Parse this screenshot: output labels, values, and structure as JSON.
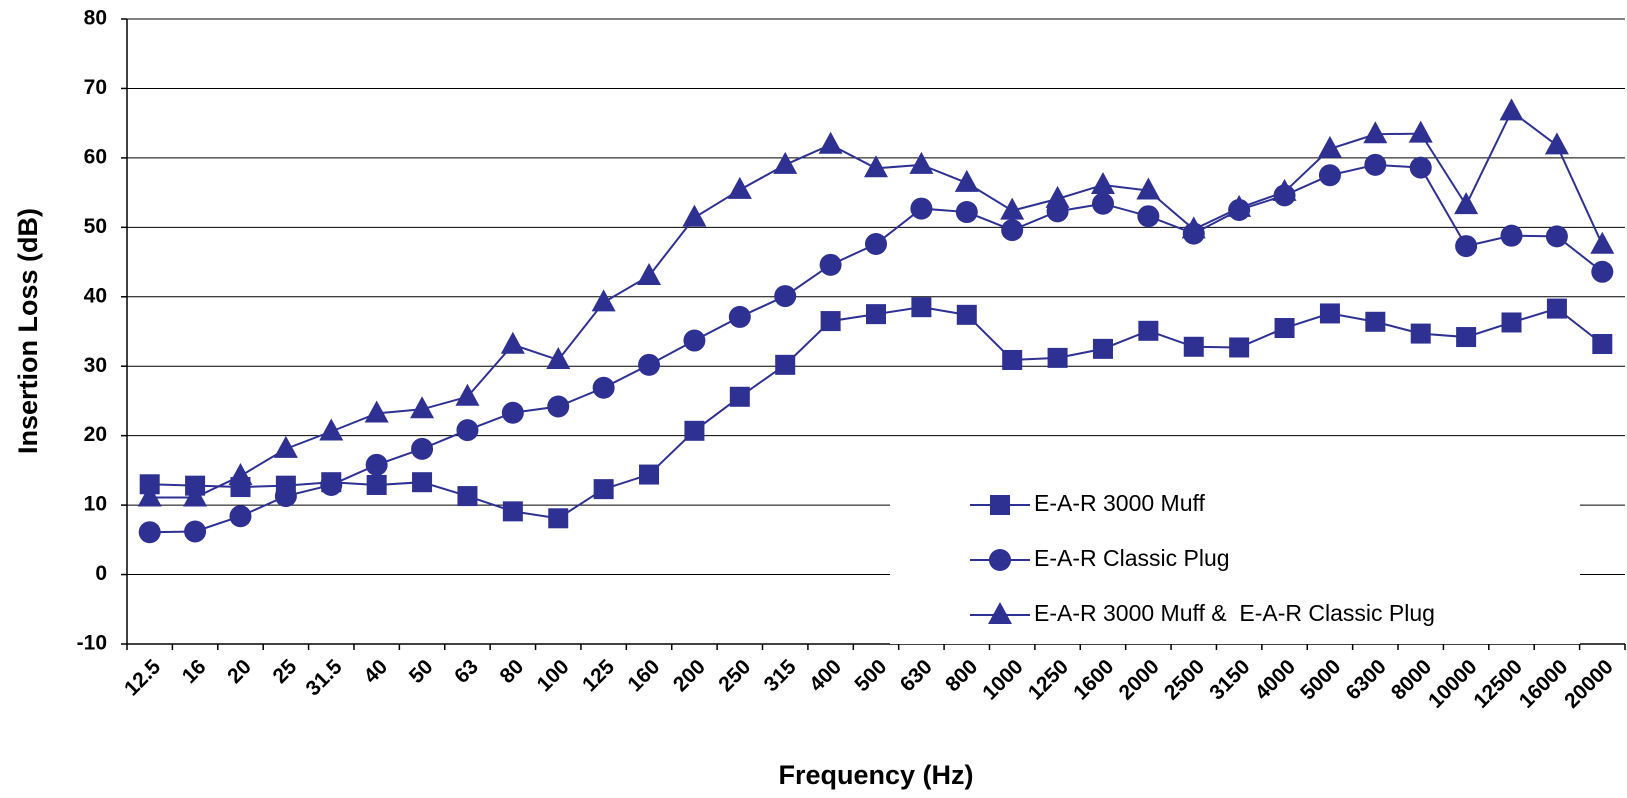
{
  "chart_data": {
    "type": "line",
    "x_label": "Frequency (Hz)",
    "y_label": "Insertion Loss (dB)",
    "categories": [
      "12.5",
      "16",
      "20",
      "25",
      "31.5",
      "40",
      "50",
      "63",
      "80",
      "100",
      "125",
      "160",
      "200",
      "250",
      "315",
      "400",
      "500",
      "630",
      "800",
      "1000",
      "1250",
      "1600",
      "2000",
      "2500",
      "3150",
      "4000",
      "5000",
      "6300",
      "8000",
      "10000",
      "12500",
      "16000",
      "20000"
    ],
    "ylim": [
      -10,
      80
    ],
    "yticks": [
      -10,
      0,
      10,
      20,
      30,
      40,
      50,
      60,
      70,
      80
    ],
    "grid": true,
    "series": [
      {
        "name": "E-A-R 3000 Muff",
        "color": "#2e3192",
        "marker": "square",
        "values": [
          13,
          12.8,
          12.6,
          12.8,
          13.3,
          12.9,
          13.3,
          11.3,
          9.1,
          8.1,
          12.3,
          14.4,
          20.7,
          25.6,
          30.2,
          36.5,
          37.5,
          38.5,
          37.4,
          30.9,
          31.2,
          32.5,
          35.1,
          32.8,
          32.7,
          35.5,
          37.6,
          36.4,
          34.7,
          34.2,
          36.3,
          38.3,
          33.2
        ]
      },
      {
        "name": "E-A-R Classic Plug",
        "color": "#2e3192",
        "marker": "circle",
        "values": [
          6.1,
          6.2,
          8.4,
          11.3,
          12.9,
          15.8,
          18.1,
          20.8,
          23.3,
          24.2,
          26.9,
          30.2,
          33.7,
          37.1,
          40.1,
          44.6,
          47.6,
          52.7,
          52.2,
          49.6,
          52.3,
          53.4,
          51.6,
          49.1,
          52.5,
          54.6,
          57.5,
          59.0,
          58.6,
          47.3,
          48.8,
          48.7,
          43.6
        ]
      },
      {
        "name": "E-A-R 3000 Muff &  E-A-R Classic Plug",
        "color": "#2e3192",
        "marker": "triangle",
        "values": [
          11.1,
          11.1,
          14.2,
          18.1,
          20.6,
          23.2,
          23.8,
          25.6,
          33.1,
          30.9,
          39.2,
          43.0,
          51.4,
          55.4,
          59.0,
          61.9,
          58.5,
          59.0,
          56.4,
          52.4,
          54.1,
          56.1,
          55.3,
          49.7,
          52.8,
          55.1,
          61.3,
          63.4,
          63.5,
          53.2,
          66.7,
          61.8,
          47.5
        ]
      }
    ]
  }
}
